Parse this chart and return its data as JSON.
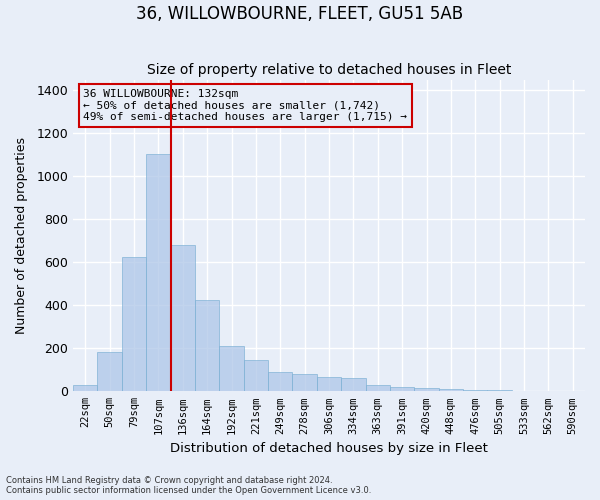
{
  "title": "36, WILLOWBOURNE, FLEET, GU51 5AB",
  "subtitle": "Size of property relative to detached houses in Fleet",
  "xlabel": "Distribution of detached houses by size in Fleet",
  "ylabel": "Number of detached properties",
  "bar_labels": [
    "22sqm",
    "50sqm",
    "79sqm",
    "107sqm",
    "136sqm",
    "164sqm",
    "192sqm",
    "221sqm",
    "249sqm",
    "278sqm",
    "306sqm",
    "334sqm",
    "363sqm",
    "391sqm",
    "420sqm",
    "448sqm",
    "476sqm",
    "505sqm",
    "533sqm",
    "562sqm",
    "590sqm"
  ],
  "bar_values": [
    30,
    185,
    625,
    1105,
    680,
    425,
    210,
    145,
    90,
    80,
    68,
    60,
    30,
    20,
    15,
    10,
    8,
    5,
    3,
    2,
    1
  ],
  "bar_color": "#aec6e8",
  "bar_edge_color": "#7aafd4",
  "bar_alpha": 0.75,
  "vline_color": "#cc0000",
  "vline_index": 4,
  "annotation_text": "36 WILLOWBOURNE: 132sqm\n← 50% of detached houses are smaller (1,742)\n49% of semi-detached houses are larger (1,715) →",
  "annotation_box_color": "#cc0000",
  "ylim": [
    0,
    1450
  ],
  "yticks": [
    0,
    200,
    400,
    600,
    800,
    1000,
    1200,
    1400
  ],
  "background_color": "#e8eef8",
  "grid_color": "#ffffff",
  "footer_line1": "Contains HM Land Registry data © Crown copyright and database right 2024.",
  "footer_line2": "Contains public sector information licensed under the Open Government Licence v3.0.",
  "title_fontsize": 12,
  "subtitle_fontsize": 10,
  "ylabel_text": "Number of detached properties"
}
